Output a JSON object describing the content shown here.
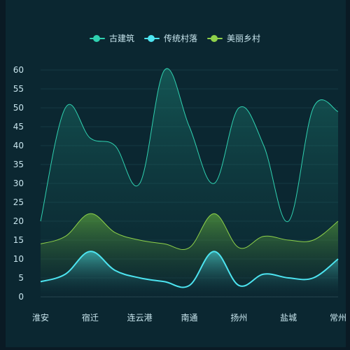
{
  "chart_data": {
    "type": "area",
    "title": "",
    "xlabel": "",
    "ylabel": "",
    "categories": [
      "淮安",
      "宿迁",
      "连云港",
      "南通",
      "扬州",
      "盐城",
      "常州"
    ],
    "ylim": [
      0,
      60
    ],
    "yticks": [
      0,
      5,
      10,
      15,
      20,
      25,
      30,
      35,
      40,
      45,
      50,
      55,
      60
    ],
    "grid": true,
    "legend_position": "top-center",
    "series": [
      {
        "name": "古建筑",
        "color": "#2fd1b0",
        "x": [
          0,
          0.5,
          1,
          1.5,
          2,
          2.5,
          3,
          3.5,
          4,
          4.5,
          5,
          5.5,
          6
        ],
        "values": [
          20,
          50,
          42,
          40,
          30,
          60,
          45,
          30,
          50,
          40,
          20,
          50,
          49
        ]
      },
      {
        "name": "传统村落",
        "color": "#4de4f0",
        "x": [
          0,
          0.5,
          1,
          1.5,
          2,
          2.5,
          3,
          3.5,
          4,
          4.5,
          5,
          5.5,
          6
        ],
        "values": [
          4,
          6,
          12,
          7,
          5,
          4,
          3,
          12,
          3,
          6,
          5,
          5,
          10
        ]
      },
      {
        "name": "美丽乡村",
        "color": "#8fd14a",
        "x": [
          0,
          0.5,
          1,
          1.5,
          2,
          2.5,
          3,
          3.5,
          4,
          4.5,
          5,
          5.5,
          6
        ],
        "values": [
          14,
          16,
          22,
          17,
          15,
          14,
          13,
          22,
          13,
          16,
          15,
          15,
          20
        ]
      }
    ]
  }
}
